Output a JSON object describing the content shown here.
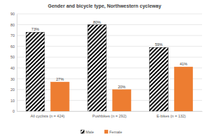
{
  "chart_data": {
    "type": "bar",
    "title": "Gender and bicycle type, Northwestern cycleway",
    "categories": [
      "All cyclists (n = 424)",
      "Pushbikes (n = 292)",
      "E-bikes (n = 132)"
    ],
    "series": [
      {
        "name": "Male",
        "color": "#000000",
        "marker": "hatch",
        "values": [
          73,
          80,
          59
        ],
        "value_labels": [
          "73%",
          "80%",
          "59%"
        ]
      },
      {
        "name": "Female",
        "color": "#ed7d31",
        "values": [
          27,
          20,
          41
        ],
        "value_labels": [
          "27%",
          "20%",
          "41%"
        ]
      }
    ],
    "ylim": [
      0,
      90
    ],
    "yticks": [
      0,
      10,
      20,
      30,
      40,
      50,
      60,
      70,
      80,
      90
    ],
    "grid": true,
    "legend": "bottom",
    "data_labels": true
  }
}
